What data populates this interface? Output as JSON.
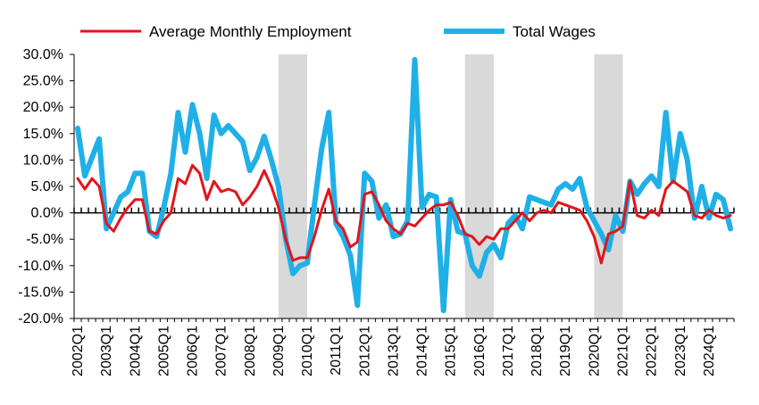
{
  "chart_data": {
    "type": "line",
    "title": "",
    "xlabel": "",
    "ylabel": "",
    "ylim": [
      -20,
      30
    ],
    "y_tick_labels": [
      "30.0%",
      "25.0%",
      "20.0%",
      "15.0%",
      "10.0%",
      "5.0%",
      "0.0%",
      "-5.0%",
      "-10.0%",
      "-15.0%",
      "-20.0%"
    ],
    "y_tick_values": [
      30,
      25,
      20,
      15,
      10,
      5,
      0,
      -5,
      -10,
      -15,
      -20
    ],
    "x_tick_labels": [
      "2002Q1",
      "2003Q1",
      "2004Q1",
      "2005Q1",
      "2006Q1",
      "2007Q1",
      "2008Q1",
      "2009Q1",
      "2010Q1",
      "2011Q1",
      "2012Q1",
      "2013Q1",
      "2014Q1",
      "2015Q1",
      "2016Q1",
      "2017Q1",
      "2018Q1",
      "2019Q1",
      "2020Q1",
      "2021Q1",
      "2022Q1",
      "2023Q1",
      "2024Q1"
    ],
    "x_tick_indices": [
      0,
      4,
      8,
      12,
      16,
      20,
      24,
      28,
      32,
      36,
      40,
      44,
      48,
      52,
      56,
      60,
      64,
      68,
      72,
      76,
      80,
      84,
      88
    ],
    "num_quarters": 92,
    "shaded_periods": [
      [
        28,
        32
      ],
      [
        54,
        58
      ],
      [
        72,
        76
      ]
    ],
    "shade_color": "#d9d9d9",
    "legend_position": "top",
    "series": [
      {
        "name": "Average Monthly Employment",
        "color": "#e3141b",
        "width": 3,
        "values": [
          6.5,
          4.5,
          6.5,
          5.0,
          -2.0,
          -3.5,
          -1.0,
          1.0,
          2.5,
          2.5,
          -3.5,
          -4.0,
          -1.5,
          0.0,
          6.5,
          5.5,
          9.0,
          7.5,
          2.5,
          6.0,
          4.0,
          4.5,
          4.0,
          1.5,
          3.0,
          5.0,
          8.0,
          5.0,
          1.0,
          -5.0,
          -9.0,
          -8.5,
          -8.5,
          -4.5,
          0.5,
          4.5,
          -1.5,
          -3.0,
          -6.5,
          -5.5,
          3.5,
          4.0,
          1.5,
          -1.5,
          -3.0,
          -4.0,
          -2.0,
          -2.5,
          -1.0,
          0.5,
          1.5,
          1.5,
          2.0,
          -0.5,
          -4.0,
          -4.5,
          -6.0,
          -4.5,
          -5.0,
          -3.0,
          -3.0,
          -1.5,
          0.0,
          -1.5,
          0.0,
          0.5,
          0.0,
          2.0,
          1.5,
          1.0,
          0.5,
          -1.5,
          -4.5,
          -9.5,
          -4.0,
          -3.5,
          -2.5,
          6.0,
          -0.5,
          -1.0,
          0.5,
          -0.5,
          4.5,
          6.0,
          5.0,
          4.0,
          -0.5,
          -1.0,
          0.5,
          -0.5,
          -1.0,
          -0.5
        ]
      },
      {
        "name": "Total Wages",
        "color": "#1fb0e8",
        "width": 6,
        "values": [
          16.0,
          7.0,
          10.5,
          14.0,
          -3.0,
          0.0,
          3.0,
          4.0,
          7.5,
          7.5,
          -3.5,
          -4.5,
          1.0,
          7.5,
          19.0,
          11.5,
          20.5,
          15.0,
          6.5,
          18.5,
          15.0,
          16.5,
          15.0,
          13.5,
          8.0,
          10.5,
          14.5,
          10.0,
          5.0,
          -5.0,
          -11.5,
          -10.0,
          -9.5,
          1.5,
          12.0,
          19.0,
          -2.0,
          -4.5,
          -8.0,
          -17.5,
          7.5,
          6.0,
          -1.0,
          1.5,
          -4.5,
          -4.0,
          -1.5,
          29.0,
          1.0,
          3.5,
          3.0,
          -18.5,
          2.5,
          -3.5,
          -4.0,
          -10.0,
          -12.0,
          -7.5,
          -6.0,
          -8.5,
          -2.0,
          -0.5,
          -3.0,
          3.0,
          2.5,
          2.0,
          1.5,
          4.5,
          5.5,
          4.5,
          6.5,
          1.0,
          -1.5,
          -4.0,
          -7.0,
          -0.5,
          -3.5,
          6.0,
          3.5,
          5.5,
          7.0,
          5.0,
          19.0,
          6.0,
          15.0,
          10.0,
          -1.0,
          5.0,
          -1.0,
          3.5,
          2.5,
          -3.0
        ]
      }
    ]
  }
}
